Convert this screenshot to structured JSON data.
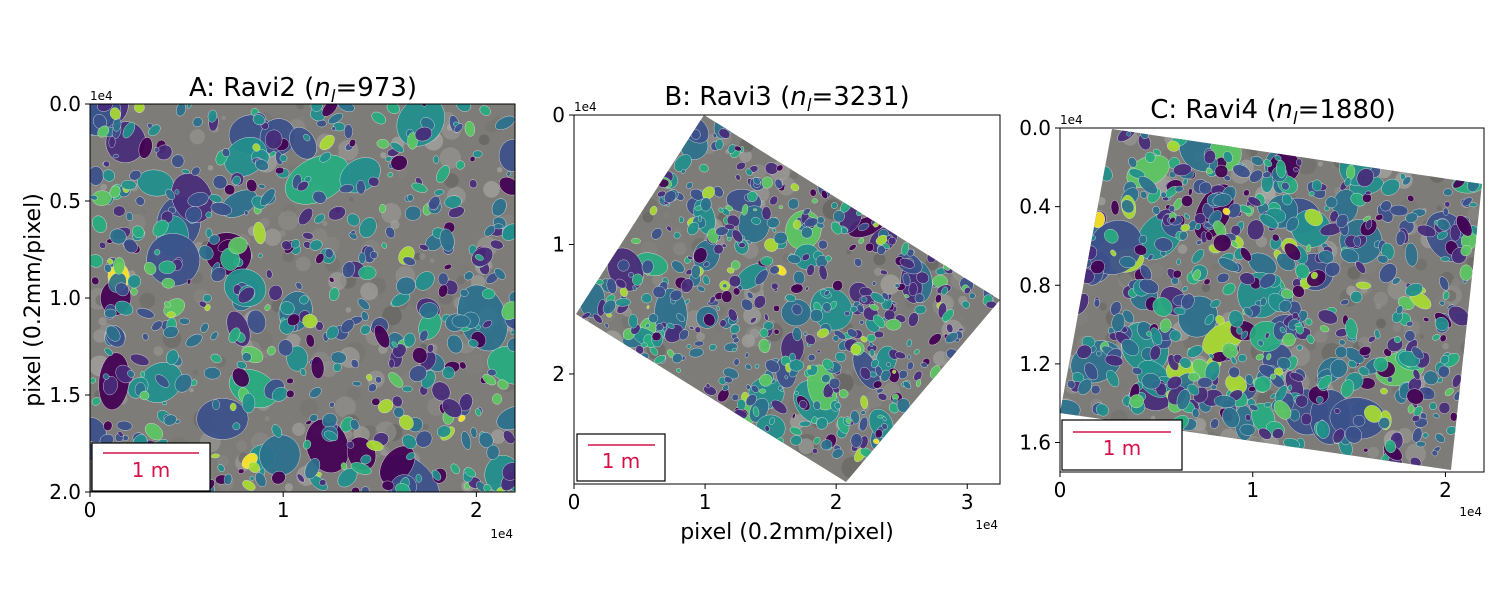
{
  "figure": {
    "shared_ylabel": "pixel (0.2mm/pixel)",
    "shared_xlabel": "pixel (0.2mm/pixel)",
    "colors": {
      "frame": "#000000",
      "scalebar": "#d6124a",
      "pebble_palette": [
        "#440154",
        "#472c7a",
        "#3b518b",
        "#2c718e",
        "#21908d",
        "#27ad81",
        "#5cc863",
        "#aadc32",
        "#fde725"
      ],
      "bed": "#8c8a86"
    }
  },
  "chart_data": [
    {
      "type": "image",
      "title_prefix": "A: Ravi2 (",
      "title_var": "n",
      "title_sub": "l",
      "title_suffix": "=973)",
      "n_l": 973,
      "ylabel": "pixel (0.2mm/pixel)",
      "xlabel": "",
      "x_ticks": [
        "0",
        "1",
        "2"
      ],
      "x_tick_values": [
        0,
        1,
        2
      ],
      "y_ticks": [
        "0.0",
        "0.5",
        "1.0",
        "1.5",
        "2.0"
      ],
      "y_tick_values": [
        0,
        0.5,
        1.0,
        1.5,
        2.0
      ],
      "xlim": [
        0,
        2.2
      ],
      "ylim": [
        2.0,
        0
      ],
      "x_offset_label": "1e4",
      "y_offset_label": "1e4",
      "scalebar_label": "1 m",
      "mask": "full",
      "seed": 11,
      "pebble_count": 560
    },
    {
      "type": "image",
      "title_prefix": "B: Ravi3 (",
      "title_var": "n",
      "title_sub": "l",
      "title_suffix": "=3231)",
      "n_l": 3231,
      "ylabel": "",
      "xlabel": "pixel (0.2mm/pixel)",
      "x_ticks": [
        "0",
        "1",
        "2",
        "3"
      ],
      "x_tick_values": [
        0,
        1,
        2,
        3
      ],
      "y_ticks": [
        "0",
        "1",
        "2"
      ],
      "y_tick_values": [
        0,
        1,
        2
      ],
      "xlim": [
        0,
        3.25
      ],
      "ylim": [
        2.85,
        0
      ],
      "x_offset_label": "1e4",
      "y_offset_label": "1e4",
      "scalebar_label": "1 m",
      "mask": "rotated",
      "seed": 23,
      "pebble_count": 1100
    },
    {
      "type": "image",
      "title_prefix": "C: Ravi4 (",
      "title_var": "n",
      "title_sub": "l",
      "title_suffix": "=1880)",
      "n_l": 1880,
      "ylabel": "",
      "xlabel": "",
      "x_ticks": [
        "0",
        "1",
        "2"
      ],
      "x_tick_values": [
        0,
        1,
        2
      ],
      "y_ticks": [
        "0.0",
        "0.4",
        "0.8",
        "1.2",
        "1.6"
      ],
      "y_tick_values": [
        0,
        0.4,
        0.8,
        1.2,
        1.6
      ],
      "xlim": [
        0,
        2.2
      ],
      "ylim": [
        1.75,
        0
      ],
      "x_offset_label": "1e4",
      "y_offset_label": "1e4",
      "scalebar_label": "1 m",
      "mask": "tilted",
      "seed": 37,
      "pebble_count": 820
    }
  ]
}
